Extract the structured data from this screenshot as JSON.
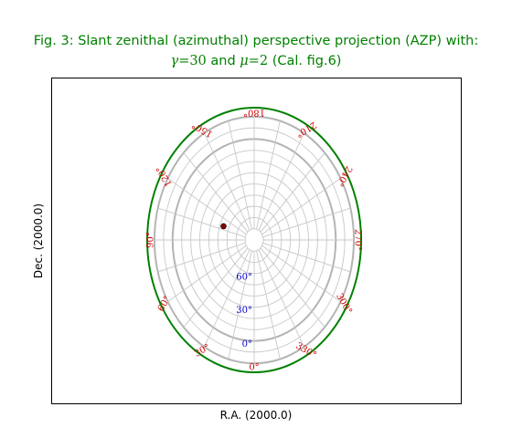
{
  "chart_data": {
    "type": "scatter",
    "projection": "AZP (slant zenithal perspective)",
    "title_line1": "Fig. 3: Slant zenithal (azimuthal) perspective projection (AZP) with:",
    "title_line2": {
      "gamma_symbol": "γ",
      "gamma_value": "=30",
      "connector": " and ",
      "mu_symbol": "μ",
      "mu_value": "=2",
      "suffix": " (Cal. fig.6)"
    },
    "xlabel": "R.A. (2000.0)",
    "ylabel": "Dec. (2000.0)",
    "ra_tick_labels": [
      "0°",
      "30°",
      "60°",
      "90°",
      "120°",
      "150°",
      "180°",
      "210°",
      "240°",
      "270°",
      "300°",
      "330°"
    ],
    "ra_tick_values": [
      0,
      30,
      60,
      90,
      120,
      150,
      180,
      210,
      240,
      270,
      300,
      330
    ],
    "dec_tick_labels": [
      "0°",
      "30°",
      "60°"
    ],
    "dec_tick_values": [
      0,
      30,
      60
    ],
    "ra_grid_step_deg": 15,
    "dec_grid_step_deg": 10,
    "dec_grid_range": [
      -20,
      80
    ],
    "highlighted_dec": [
      0,
      -20
    ],
    "grid": true,
    "points": [
      {
        "ra": 110,
        "dec": 54,
        "marker": "filled-circle"
      }
    ],
    "colors": {
      "title": "#008000",
      "grid": "#c8c8c8",
      "highlight_grid": "#b4b4b4",
      "border": "#008000",
      "ra_labels": "#d00000",
      "dec_labels": "#0000cc",
      "marker": "#8b0000"
    }
  }
}
